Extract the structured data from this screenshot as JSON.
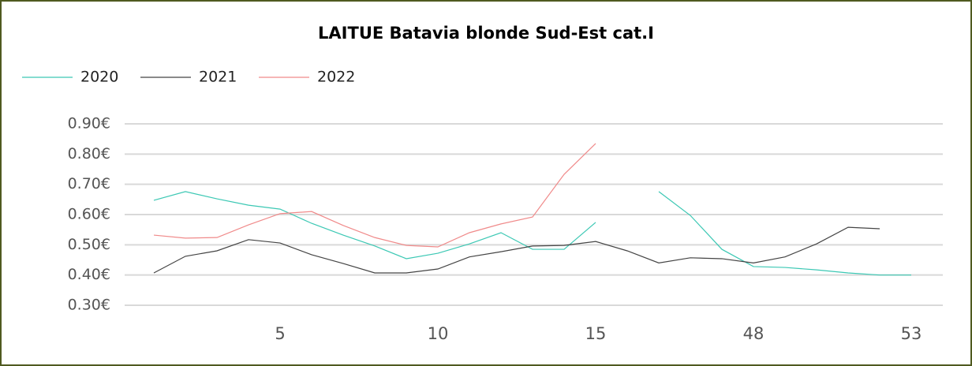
{
  "chart_data": {
    "type": "line",
    "title": "LAITUE Batavia blonde Sud-Est cat.I",
    "categories": [
      null,
      null,
      null,
      null,
      "5",
      null,
      null,
      null,
      null,
      "10",
      null,
      null,
      null,
      null,
      "15",
      null,
      null,
      null,
      null,
      "48",
      null,
      null,
      null,
      null,
      "53"
    ],
    "series": [
      {
        "name": "2020",
        "color": "#3cc8b4",
        "values": [
          0.647,
          0.676,
          0.652,
          0.631,
          0.618,
          0.571,
          0.532,
          0.496,
          0.454,
          0.472,
          0.503,
          0.54,
          0.485,
          0.485,
          0.574,
          null,
          0.676,
          0.597,
          0.485,
          0.428,
          0.425,
          0.417,
          0.407,
          0.4,
          0.4
        ]
      },
      {
        "name": "2021",
        "color": "#444444",
        "values": [
          0.407,
          0.462,
          0.48,
          0.517,
          0.506,
          0.467,
          0.438,
          0.407,
          0.407,
          0.42,
          0.46,
          0.477,
          0.496,
          0.498,
          0.511,
          0.48,
          0.44,
          0.457,
          0.454,
          0.44,
          0.46,
          0.503,
          0.558,
          0.553,
          null
        ]
      },
      {
        "name": "2022",
        "color": "#f08a8a",
        "values": [
          0.532,
          0.522,
          0.524,
          0.566,
          0.603,
          0.61,
          0.564,
          0.524,
          0.498,
          0.493,
          0.54,
          0.569,
          0.592,
          0.733,
          0.835,
          null,
          null,
          null,
          null,
          null,
          null,
          null,
          null,
          null,
          null
        ]
      }
    ],
    "ylim": [
      0.3,
      0.9
    ],
    "yticks": [
      {
        "value": 0.3,
        "label": "0.30€"
      },
      {
        "value": 0.4,
        "label": "0.40€"
      },
      {
        "value": 0.5,
        "label": "0.50€"
      },
      {
        "value": 0.6,
        "label": "0.60€"
      },
      {
        "value": 0.7,
        "label": "0.70€"
      },
      {
        "value": 0.8,
        "label": "0.80€"
      },
      {
        "value": 0.9,
        "label": "0.90€"
      }
    ],
    "grid": true,
    "legend": "top-left"
  }
}
